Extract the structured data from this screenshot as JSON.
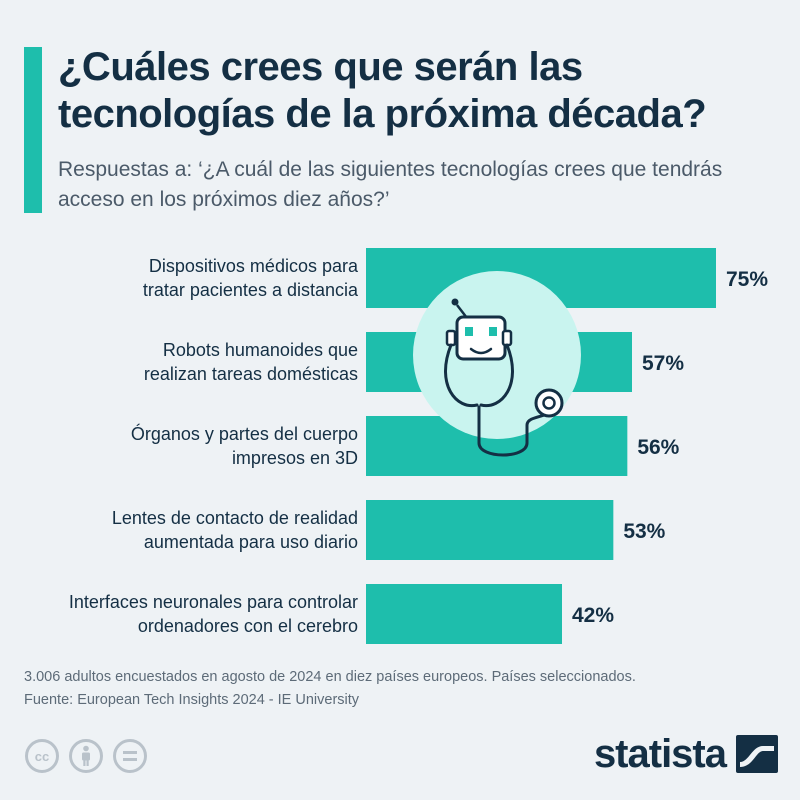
{
  "title": "¿Cuáles crees que serán las tecnologías de la próxima década?",
  "subtitle": "Respuestas a: ‘¿A cuál de las siguientes tecnologías crees que tendrás acceso en los próximos diez años?’",
  "colors": {
    "accent": "#1ebeac",
    "bar": "#1ebeac",
    "title": "#142f44",
    "text": "#142f44",
    "subtitle": "#4b5a69",
    "illustration_circle": "#c9f4ef",
    "background": "#eef2f5"
  },
  "chart_data": {
    "type": "bar",
    "orientation": "horizontal",
    "categories": [
      [
        "Dispositivos médicos para",
        "tratar pacientes a distancia"
      ],
      [
        "Robots humanoides que",
        "realizan tareas domésticas"
      ],
      [
        "Órganos y partes del cuerpo",
        "impresos en 3D"
      ],
      [
        "Lentes de contacto de realidad",
        "aumentada para uso diario"
      ],
      [
        "Interfaces neuronales para controlar",
        "ordenadores con el cerebro"
      ]
    ],
    "values": [
      75,
      57,
      56,
      53,
      42
    ],
    "value_labels": [
      "75%",
      "57%",
      "56%",
      "53%",
      "42%"
    ],
    "unit": "%",
    "xlim": [
      0,
      75
    ],
    "grid": false,
    "legend": "none",
    "illustration": "robot-stethoscope-icon"
  },
  "footnote": {
    "line1": "3.006 adultos encuestados en agosto de 2024 en diez países europeos. Países seleccionados.",
    "line2": "Fuente: European Tech Insights 2024 - IE University"
  },
  "license_icons": [
    "cc-icon",
    "person-attribution-icon",
    "equals-noderivs-icon"
  ],
  "brand": {
    "name": "statista",
    "logo_icon": "statista-wave-icon"
  }
}
